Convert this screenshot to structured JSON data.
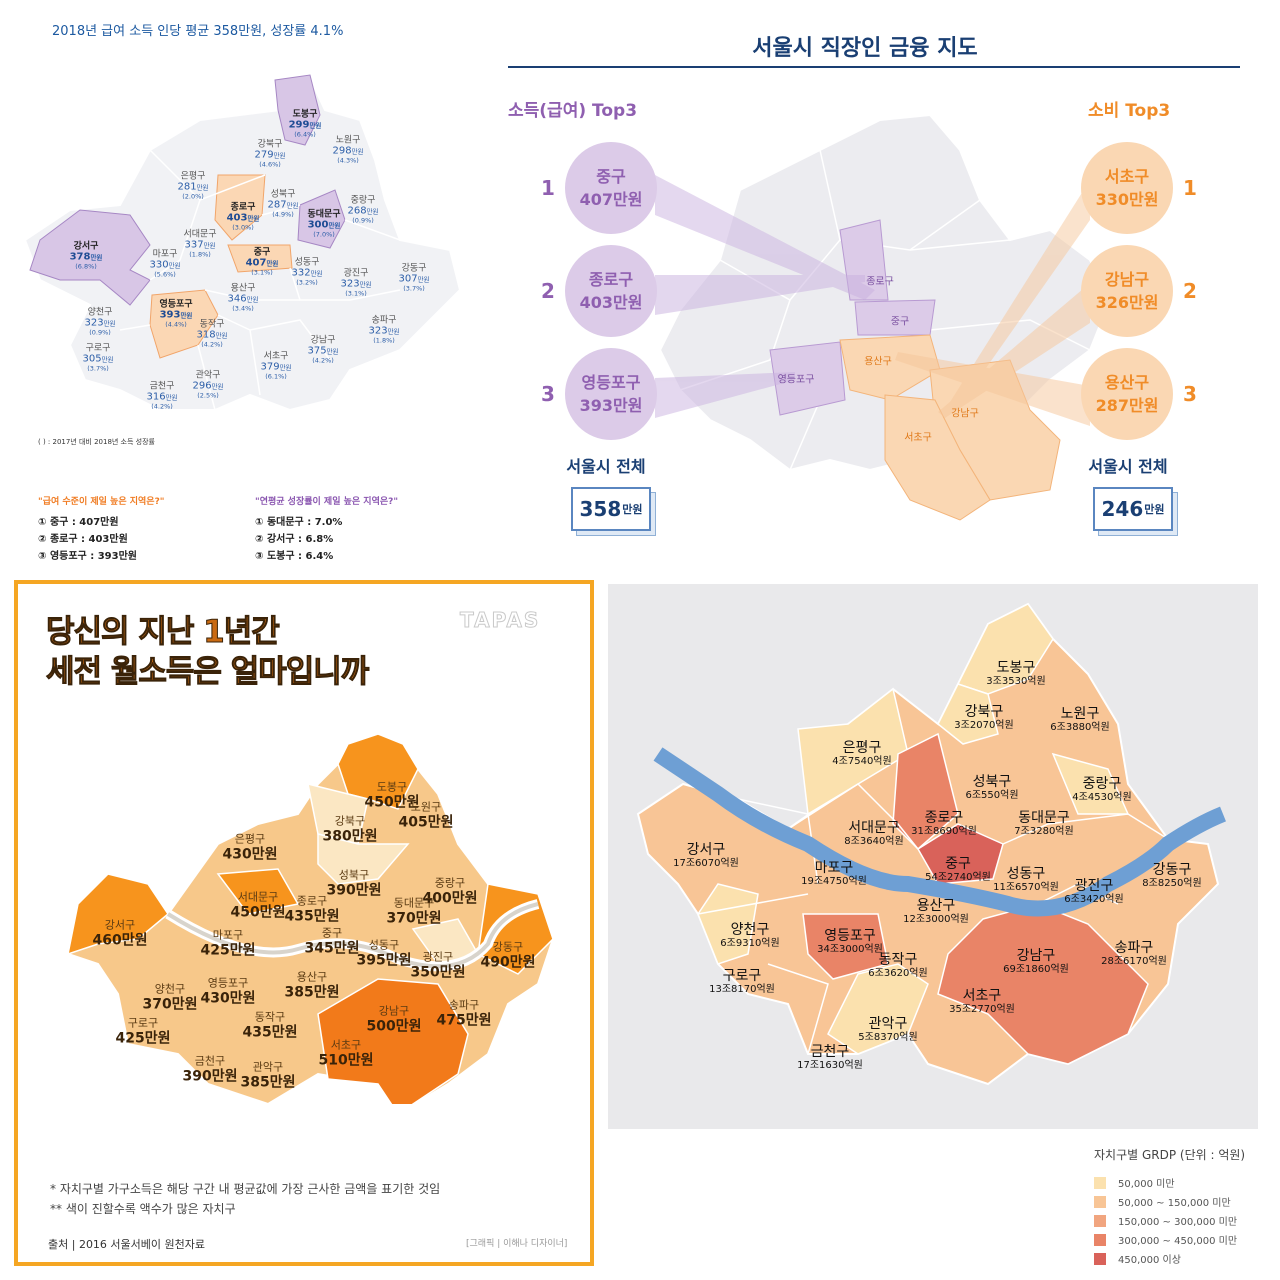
{
  "panel1": {
    "header": "2018년 급여 소득 인당 평균 358만원, 성장률 4.1%",
    "districts": [
      {
        "name": "도봉구",
        "value": "299",
        "unit": "만원",
        "growth": "(6.4%)",
        "bold": true
      },
      {
        "name": "노원구",
        "value": "298",
        "unit": "만원",
        "growth": "(4.3%)"
      },
      {
        "name": "강북구",
        "value": "279",
        "unit": "만원",
        "growth": "(4.6%)"
      },
      {
        "name": "은평구",
        "value": "281",
        "unit": "만원",
        "growth": "(2.0%)"
      },
      {
        "name": "성북구",
        "value": "287",
        "unit": "만원",
        "growth": "(4.9%)"
      },
      {
        "name": "중랑구",
        "value": "268",
        "unit": "만원",
        "growth": "(0.9%)"
      },
      {
        "name": "종로구",
        "value": "403",
        "unit": "만원",
        "growth": "(3.0%)",
        "bold": true
      },
      {
        "name": "동대문구",
        "value": "300",
        "unit": "만원",
        "growth": "(7.0%)",
        "bold": true
      },
      {
        "name": "서대문구",
        "value": "337",
        "unit": "만원",
        "growth": "(1.8%)"
      },
      {
        "name": "강서구",
        "value": "378",
        "unit": "만원",
        "growth": "(6.8%)",
        "bold": true
      },
      {
        "name": "마포구",
        "value": "330",
        "unit": "만원",
        "growth": "(5.6%)"
      },
      {
        "name": "중구",
        "value": "407",
        "unit": "만원",
        "growth": "(3.1%)",
        "bold": true
      },
      {
        "name": "성동구",
        "value": "332",
        "unit": "만원",
        "growth": "(3.2%)"
      },
      {
        "name": "광진구",
        "value": "323",
        "unit": "만원",
        "growth": "(3.1%)"
      },
      {
        "name": "강동구",
        "value": "307",
        "unit": "만원",
        "growth": "(3.7%)"
      },
      {
        "name": "용산구",
        "value": "346",
        "unit": "만원",
        "growth": "(3.4%)"
      },
      {
        "name": "영등포구",
        "value": "393",
        "unit": "만원",
        "growth": "(4.4%)",
        "bold": true
      },
      {
        "name": "양천구",
        "value": "323",
        "unit": "만원",
        "growth": "(0.9%)"
      },
      {
        "name": "동작구",
        "value": "318",
        "unit": "만원",
        "growth": "(4.2%)"
      },
      {
        "name": "송파구",
        "value": "323",
        "unit": "만원",
        "growth": "(1.8%)"
      },
      {
        "name": "강남구",
        "value": "375",
        "unit": "만원",
        "growth": "(4.2%)"
      },
      {
        "name": "구로구",
        "value": "305",
        "unit": "만원",
        "growth": "(3.7%)"
      },
      {
        "name": "서초구",
        "value": "379",
        "unit": "만원",
        "growth": "(6.1%)"
      },
      {
        "name": "관악구",
        "value": "296",
        "unit": "만원",
        "growth": "(2.5%)"
      },
      {
        "name": "금천구",
        "value": "316",
        "unit": "만원",
        "growth": "(4.2%)"
      }
    ],
    "note": "(     ) : 2017년 대비 2018년 소득 성장률",
    "q1_title": "\"급여 수준이 제일 높은 지역은?\"",
    "q1_items": [
      "① 중구 : 407만원",
      "② 종로구 : 403만원",
      "③ 영등포구 : 393만원"
    ],
    "q2_title": "\"연평균 성장률이 제일 높은 지역은?\"",
    "q2_items": [
      "① 동대문구 : 7.0%",
      "② 강서구 : 6.8%",
      "③ 도봉구 : 6.4%"
    ]
  },
  "panel2": {
    "title": "서울시 직장인 금융 지도",
    "income_title": "소득(급여) Top3",
    "spend_title": "소비 Top3",
    "income_top": [
      {
        "rank": "1",
        "name": "중구",
        "value": "407만원"
      },
      {
        "rank": "2",
        "name": "종로구",
        "value": "403만원"
      },
      {
        "rank": "3",
        "name": "영등포구",
        "value": "393만원"
      }
    ],
    "spend_top": [
      {
        "rank": "1",
        "name": "서초구",
        "value": "330만원"
      },
      {
        "rank": "2",
        "name": "강남구",
        "value": "326만원"
      },
      {
        "rank": "3",
        "name": "용산구",
        "value": "287만원"
      }
    ],
    "map_labels": [
      "종로구",
      "중구",
      "영등포구",
      "용산구",
      "강남구",
      "서초구"
    ],
    "income_total_label": "서울시 전체",
    "income_total_value": "358",
    "spend_total_label": "서울시 전체",
    "spend_total_value": "246",
    "unit": "만원",
    "colors": {
      "income": "#8f5fb0",
      "income_fill": "#dccbe8",
      "spend": "#f08c28",
      "spend_fill": "#fad7b3"
    }
  },
  "panel3": {
    "title_line1": "당신의 지난 1년간",
    "title_line2": "세전 월소득은 얼마입니까",
    "logo": "TAPAS",
    "districts": [
      {
        "name": "도봉구",
        "value": "450만원"
      },
      {
        "name": "노원구",
        "value": "405만원"
      },
      {
        "name": "강북구",
        "value": "380만원"
      },
      {
        "name": "은평구",
        "value": "430만원"
      },
      {
        "name": "성북구",
        "value": "390만원"
      },
      {
        "name": "중랑구",
        "value": "400만원"
      },
      {
        "name": "서대문구",
        "value": "450만원"
      },
      {
        "name": "종로구",
        "value": "435만원"
      },
      {
        "name": "동대문구",
        "value": "370만원"
      },
      {
        "name": "강서구",
        "value": "460만원"
      },
      {
        "name": "마포구",
        "value": "425만원"
      },
      {
        "name": "중구",
        "value": "345만원"
      },
      {
        "name": "성동구",
        "value": "395만원"
      },
      {
        "name": "광진구",
        "value": "350만원"
      },
      {
        "name": "강동구",
        "value": "490만원"
      },
      {
        "name": "용산구",
        "value": "385만원"
      },
      {
        "name": "양천구",
        "value": "370만원"
      },
      {
        "name": "영등포구",
        "value": "430만원"
      },
      {
        "name": "동작구",
        "value": "435만원"
      },
      {
        "name": "구로구",
        "value": "425만원"
      },
      {
        "name": "서초구",
        "value": "510만원"
      },
      {
        "name": "강남구",
        "value": "500만원"
      },
      {
        "name": "송파구",
        "value": "475만원"
      },
      {
        "name": "금천구",
        "value": "390만원"
      },
      {
        "name": "관악구",
        "value": "385만원"
      }
    ],
    "footnote1": "*   자치구별 가구소득은 해당 구간 내 평균값에 가장 근사한 금액을 표기한 것임",
    "footnote2": "**  색이 진할수록 액수가 많은 자치구",
    "source": "출처 | 2016 서울서베이 원천자료",
    "credit": "[그래픽 | 이해나 디자이너]"
  },
  "panel4": {
    "districts": [
      {
        "name": "도봉구",
        "value": "3조3530억원"
      },
      {
        "name": "강북구",
        "value": "3조2070억원"
      },
      {
        "name": "노원구",
        "value": "6조3880억원"
      },
      {
        "name": "은평구",
        "value": "4조7540억원"
      },
      {
        "name": "성북구",
        "value": "6조550억원"
      },
      {
        "name": "중랑구",
        "value": "4조4530억원"
      },
      {
        "name": "종로구",
        "value": "31조8690억원"
      },
      {
        "name": "서대문구",
        "value": "8조3640억원"
      },
      {
        "name": "동대문구",
        "value": "7조3280억원"
      },
      {
        "name": "강서구",
        "value": "17조6070억원"
      },
      {
        "name": "마포구",
        "value": "19조4750억원"
      },
      {
        "name": "중구",
        "value": "54조2740억원"
      },
      {
        "name": "성동구",
        "value": "11조6570억원"
      },
      {
        "name": "광진구",
        "value": "6조3420억원"
      },
      {
        "name": "강동구",
        "value": "8조8250억원"
      },
      {
        "name": "용산구",
        "value": "12조3000억원"
      },
      {
        "name": "양천구",
        "value": "6조9310억원"
      },
      {
        "name": "영등포구",
        "value": "34조3000억원"
      },
      {
        "name": "동작구",
        "value": "6조3620억원"
      },
      {
        "name": "강남구",
        "value": "69조1860억원"
      },
      {
        "name": "송파구",
        "value": "28조6170억원"
      },
      {
        "name": "구로구",
        "value": "13조8170억원"
      },
      {
        "name": "서초구",
        "value": "35조2770억원"
      },
      {
        "name": "관악구",
        "value": "5조8370억원"
      },
      {
        "name": "금천구",
        "value": "17조1630억원"
      }
    ],
    "legend_title": "자치구별 GRDP (단위 : 억원)",
    "legend": [
      {
        "label": "50,000 미만",
        "color": "#fbe1ae"
      },
      {
        "label": "50,000 ~ 150,000 미만",
        "color": "#f8c596"
      },
      {
        "label": "150,000 ~ 300,000 미만",
        "color": "#f1a57f"
      },
      {
        "label": "300,000 ~ 450,000 미만",
        "color": "#e98467"
      },
      {
        "label": "450,000 이상",
        "color": "#d9625a"
      }
    ]
  }
}
